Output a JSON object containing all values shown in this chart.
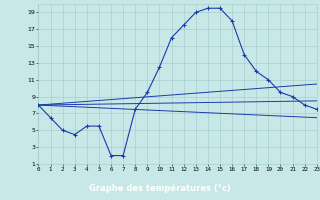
{
  "xlabel": "Graphe des températures (°c)",
  "xlim": [
    0,
    23
  ],
  "ylim": [
    1,
    20
  ],
  "yticks": [
    1,
    3,
    5,
    7,
    9,
    11,
    13,
    15,
    17,
    19
  ],
  "xticks": [
    0,
    1,
    2,
    3,
    4,
    5,
    6,
    7,
    8,
    9,
    10,
    11,
    12,
    13,
    14,
    15,
    16,
    17,
    18,
    19,
    20,
    21,
    22,
    23
  ],
  "bg_color": "#c8e8e8",
  "grid_color": "#a0c8c8",
  "line_color": "#1a3aaa",
  "xlabel_bg": "#2244aa",
  "xlabel_fg": "#ffffff",
  "line1_x": [
    0,
    1,
    2,
    3,
    4,
    5,
    6,
    7,
    8,
    9,
    10,
    11,
    12,
    13,
    14,
    15,
    16,
    17,
    18,
    19,
    20,
    21,
    22,
    23
  ],
  "line1_y": [
    8,
    6.5,
    5,
    4.5,
    5.5,
    5.5,
    2,
    2,
    7.5,
    9.5,
    12.5,
    16,
    17.5,
    19,
    19.5,
    19.5,
    18,
    14,
    12,
    11,
    9.5,
    9,
    8,
    7.5
  ],
  "line2_x": [
    0,
    23
  ],
  "line2_y": [
    8,
    10.5
  ],
  "line3_x": [
    0,
    23
  ],
  "line3_y": [
    8,
    8.5
  ],
  "line4_x": [
    0,
    23
  ],
  "line4_y": [
    8,
    6.5
  ]
}
